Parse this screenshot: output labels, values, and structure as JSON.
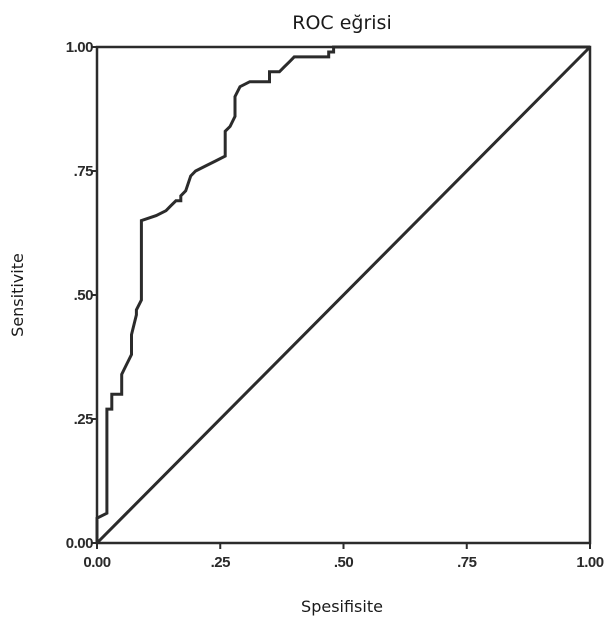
{
  "chart_data": {
    "type": "line",
    "title": "ROC eğrisi",
    "xlabel": "Spesifisite",
    "ylabel": "Sensitivite",
    "xlim": [
      0,
      1
    ],
    "ylim": [
      0,
      1
    ],
    "xticks": [
      0,
      0.25,
      0.5,
      0.75,
      1
    ],
    "yticks": [
      0,
      0.25,
      0.5,
      0.75,
      1
    ],
    "xtick_labels": [
      "0.00",
      ".25",
      ".50",
      ".75",
      "1.00"
    ],
    "ytick_labels": [
      "0.00",
      ".25",
      ".50",
      ".75",
      "1.00"
    ],
    "grid": false,
    "legend": "none",
    "colors": {
      "roc_curve": "#2b2b2b",
      "reference_line": "#2b2b2b",
      "frame": "#2b2b2b"
    },
    "series": [
      {
        "x": [
          0,
          0,
          0.02,
          0.02,
          0.02,
          0.03,
          0.03,
          0.05,
          0.05,
          0.06,
          0.07,
          0.07,
          0.08,
          0.08,
          0.09,
          0.09,
          0.12,
          0.14,
          0.15,
          0.16,
          0.17,
          0.17,
          0.18,
          0.19,
          0.2,
          0.22,
          0.24,
          0.26,
          0.26,
          0.27,
          0.28,
          0.28,
          0.29,
          0.31,
          0.32,
          0.34,
          0.35,
          0.35,
          0.37,
          0.38,
          0.39,
          0.4,
          0.42,
          0.43,
          0.45,
          0.47,
          0.47,
          0.48,
          0.48,
          1
        ],
        "y": [
          0,
          0.05,
          0.06,
          0.25,
          0.27,
          0.27,
          0.3,
          0.3,
          0.34,
          0.36,
          0.38,
          0.42,
          0.46,
          0.47,
          0.49,
          0.65,
          0.66,
          0.67,
          0.68,
          0.69,
          0.69,
          0.7,
          0.71,
          0.74,
          0.75,
          0.76,
          0.77,
          0.78,
          0.83,
          0.84,
          0.86,
          0.9,
          0.92,
          0.93,
          0.93,
          0.93,
          0.93,
          0.95,
          0.95,
          0.96,
          0.97,
          0.98,
          0.98,
          0.98,
          0.98,
          0.98,
          0.99,
          0.99,
          1,
          1
        ]
      },
      {
        "x": [
          0,
          1
        ],
        "y": [
          0,
          1
        ]
      }
    ]
  }
}
